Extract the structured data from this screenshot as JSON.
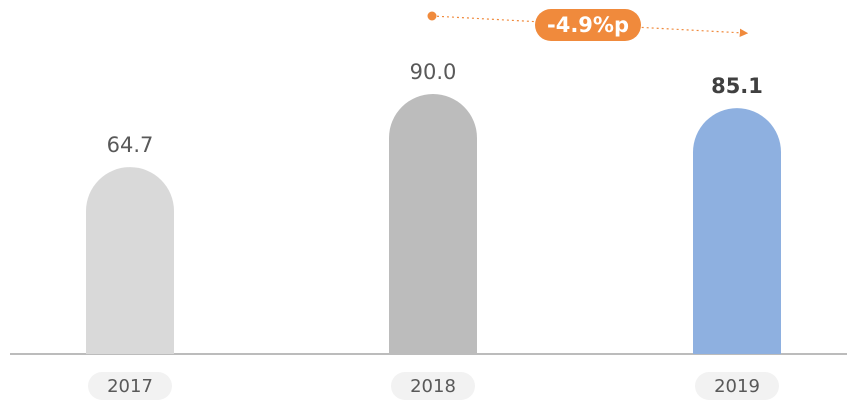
{
  "chart_data": {
    "type": "bar",
    "categories": [
      "2017",
      "2018",
      "2019"
    ],
    "values": [
      64.7,
      90.0,
      85.1
    ],
    "value_labels": [
      "64.7",
      "90.0",
      "85.1"
    ],
    "colors": [
      "#d9d9d9",
      "#bcbcbc",
      "#8eb0e0"
    ],
    "ylim": [
      0,
      90
    ],
    "annotation": "-4.9%p"
  }
}
